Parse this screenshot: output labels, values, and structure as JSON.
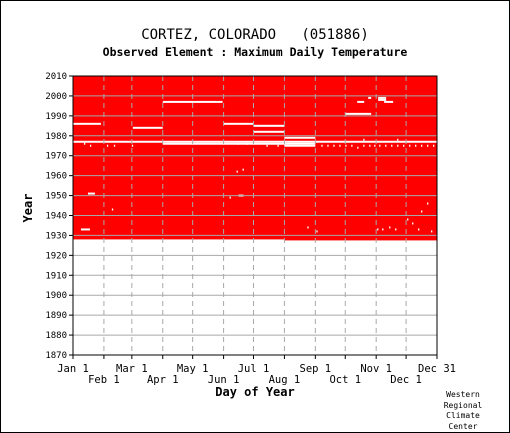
{
  "chart_data": {
    "type": "heatmap",
    "title": "CORTEZ, COLORADO   (051886)",
    "subtitle": "Observed Element : Maximum Daily Temperature",
    "xlabel": "Day of Year",
    "ylabel": "Year",
    "xlim": [
      1,
      366
    ],
    "ylim": [
      1870,
      2010
    ],
    "y_ticks": [
      1870,
      1880,
      1890,
      1900,
      1910,
      1920,
      1930,
      1940,
      1950,
      1960,
      1970,
      1980,
      1990,
      2000,
      2010
    ],
    "x_ticks": [
      {
        "label": "Jan 1",
        "day": 1,
        "row": 1
      },
      {
        "label": "Feb 1",
        "day": 32,
        "row": 2
      },
      {
        "label": "Mar 1",
        "day": 60,
        "row": 1
      },
      {
        "label": "Apr 1",
        "day": 91,
        "row": 2
      },
      {
        "label": "May 1",
        "day": 121,
        "row": 1
      },
      {
        "label": "Jun 1",
        "day": 152,
        "row": 2
      },
      {
        "label": "Jul 1",
        "day": 182,
        "row": 1
      },
      {
        "label": "Aug 1",
        "day": 213,
        "row": 2
      },
      {
        "label": "Sep 1",
        "day": 244,
        "row": 1
      },
      {
        "label": "Oct 1",
        "day": 274,
        "row": 2
      },
      {
        "label": "Nov 1",
        "day": 305,
        "row": 1
      },
      {
        "label": "Dec 1",
        "day": 335,
        "row": 2
      },
      {
        "label": "Dec 31",
        "day": 366,
        "row": 1
      }
    ],
    "grid": true,
    "data_color": "#ff0000",
    "record": {
      "start_year": 1928,
      "end_year": 2010,
      "start_year_late": 1927.5,
      "late_from_day": 213
    },
    "missing_segments": [
      {
        "year": 1986,
        "start_day": 1,
        "end_day": 28
      },
      {
        "year": 1984,
        "start_day": 61,
        "end_day": 90
      },
      {
        "year": 1997,
        "start_day": 91,
        "end_day": 150
      },
      {
        "year": 1986,
        "start_day": 152,
        "end_day": 181
      },
      {
        "year": 1985,
        "start_day": 182,
        "end_day": 212
      },
      {
        "year": 1982,
        "start_day": 182,
        "end_day": 212
      },
      {
        "year": 1979,
        "start_day": 213,
        "end_day": 243
      },
      {
        "year": 1975,
        "start_day": 213,
        "end_day": 243
      },
      {
        "year": 1977,
        "start_day": 1,
        "end_day": 366
      },
      {
        "year": 1976,
        "start_day": 91,
        "end_day": 243
      },
      {
        "year": 1991,
        "start_day": 274,
        "end_day": 299
      },
      {
        "year": 1997,
        "start_day": 286,
        "end_day": 292
      },
      {
        "year": 1999,
        "start_day": 297,
        "end_day": 299
      },
      {
        "year": 1999,
        "start_day": 307,
        "end_day": 314
      },
      {
        "year": 1998,
        "start_day": 307,
        "end_day": 314
      },
      {
        "year": 1997,
        "start_day": 313,
        "end_day": 321
      },
      {
        "year": 1951,
        "start_day": 16,
        "end_day": 22
      },
      {
        "year": 1933,
        "start_day": 9,
        "end_day": 17
      },
      {
        "year": 1950,
        "start_day": 167,
        "end_day": 171
      }
    ],
    "missing_days": [
      [
        1976,
        12
      ],
      [
        1975,
        18
      ],
      [
        1975,
        35
      ],
      [
        1975,
        42
      ],
      [
        1943,
        40
      ],
      [
        1975,
        60
      ],
      [
        1962,
        165
      ],
      [
        1963,
        171
      ],
      [
        1949,
        158
      ],
      [
        1976,
        166
      ],
      [
        1976,
        175
      ],
      [
        1975,
        195
      ],
      [
        1975,
        206
      ],
      [
        1975,
        250
      ],
      [
        1975,
        256
      ],
      [
        1975,
        262
      ],
      [
        1975,
        268
      ],
      [
        1975,
        274
      ],
      [
        1975,
        280
      ],
      [
        1974,
        286
      ],
      [
        1975,
        292
      ],
      [
        1975,
        298
      ],
      [
        1975,
        303
      ],
      [
        1975,
        308
      ],
      [
        1975,
        314
      ],
      [
        1975,
        320
      ],
      [
        1975,
        326
      ],
      [
        1975,
        332
      ],
      [
        1975,
        338
      ],
      [
        1975,
        344
      ],
      [
        1975,
        350
      ],
      [
        1975,
        356
      ],
      [
        1975,
        362
      ],
      [
        1933,
        306
      ],
      [
        1933,
        311
      ],
      [
        1934,
        318
      ],
      [
        1933,
        324
      ],
      [
        1936,
        341
      ],
      [
        1933,
        347
      ],
      [
        1942,
        350
      ],
      [
        1946,
        356
      ],
      [
        1932,
        360
      ],
      [
        1938,
        336
      ],
      [
        1934,
        236
      ],
      [
        1932,
        245
      ],
      [
        1978,
        292
      ],
      [
        1978,
        326
      ]
    ]
  },
  "credit": {
    "lines": [
      "Western",
      "Regional",
      "Climate",
      "Center"
    ]
  }
}
